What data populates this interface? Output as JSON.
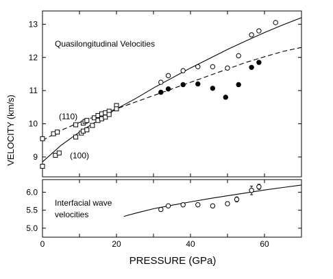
{
  "chart_data": [
    {
      "type": "scatter",
      "panel": "top",
      "annotation": "Quasilongitudinal Velocities",
      "ylabel": "VELOCITY (km/s)",
      "xlim": [
        0,
        70
      ],
      "ylim": [
        8.4,
        13.4
      ],
      "x_ticks": [
        0,
        10,
        20,
        30,
        40,
        50,
        60,
        70
      ],
      "y_ticks": [
        9,
        10,
        11,
        12,
        13
      ],
      "grid": false,
      "series_labels": {
        "s110": "(110)",
        "s100": "(100)"
      },
      "series": [
        {
          "key": "s110_points",
          "marker": "square",
          "x": [
            0,
            3,
            4,
            9,
            11,
            11.5,
            12,
            14,
            15,
            16,
            17,
            18,
            20,
            20
          ],
          "y": [
            9.55,
            9.7,
            9.75,
            9.97,
            10.02,
            10.07,
            10.1,
            10.18,
            10.25,
            10.3,
            10.33,
            10.38,
            10.5,
            10.55
          ]
        },
        {
          "key": "s100_points",
          "marker": "square",
          "x": [
            0,
            3.5,
            4.5,
            9,
            10.5,
            11,
            12,
            13.5,
            15,
            16,
            17,
            18,
            20
          ],
          "y": [
            8.72,
            9.05,
            9.12,
            9.6,
            9.72,
            9.78,
            9.82,
            9.95,
            10.1,
            10.15,
            10.2,
            10.28,
            10.45
          ]
        },
        {
          "key": "open_circles",
          "marker": "open-circle",
          "x": [
            32,
            34,
            38,
            42,
            46,
            50,
            53,
            56.5,
            58.5,
            63
          ],
          "y": [
            11.25,
            11.45,
            11.6,
            11.72,
            11.72,
            11.68,
            12.05,
            12.68,
            12.8,
            13.05
          ]
        },
        {
          "key": "filled_circles",
          "marker": "filled-circle",
          "x": [
            32,
            34,
            38,
            42,
            46,
            49.5,
            53,
            56.5,
            58.5
          ],
          "y": [
            10.95,
            11.05,
            11.18,
            11.2,
            11.07,
            10.8,
            11.18,
            11.7,
            11.85
          ]
        },
        {
          "key": "solid_curve",
          "line": "solid",
          "x": [
            0,
            5,
            10,
            15,
            20,
            25,
            30,
            35,
            40,
            45,
            50,
            55,
            60,
            65,
            70
          ],
          "y": [
            8.85,
            9.35,
            9.75,
            10.1,
            10.45,
            10.75,
            11.08,
            11.38,
            11.68,
            11.96,
            12.24,
            12.5,
            12.75,
            12.98,
            13.2
          ]
        },
        {
          "key": "dashed_curve",
          "line": "dashed",
          "x": [
            0,
            5,
            10,
            15,
            20,
            25,
            30,
            35,
            40,
            45,
            50,
            55,
            60,
            65,
            70
          ],
          "y": [
            9.5,
            9.8,
            10.04,
            10.25,
            10.45,
            10.65,
            10.85,
            11.05,
            11.25,
            11.45,
            11.65,
            11.85,
            12.02,
            12.18,
            12.3
          ]
        }
      ]
    },
    {
      "type": "scatter",
      "panel": "bottom",
      "annotation_lines": [
        "Interfacial wave",
        "velocities"
      ],
      "xlabel": "PRESSURE (GPa)",
      "xlim": [
        0,
        70
      ],
      "ylim": [
        4.75,
        6.35
      ],
      "x_ticks": [
        0,
        10,
        20,
        30,
        40,
        50,
        60,
        70
      ],
      "x_tick_labels": [
        "0",
        "20",
        "40",
        "60"
      ],
      "x_tick_label_values": [
        0,
        20,
        40,
        60
      ],
      "y_ticks": [
        5.0,
        5.5,
        6.0
      ],
      "y_tick_labels": [
        "5.0",
        "5.5",
        "6.0"
      ],
      "grid": false,
      "series": [
        {
          "key": "iw_points",
          "marker": "open-circle-errorbar",
          "x": [
            32,
            34,
            38,
            42,
            46,
            50,
            52.5,
            56.5,
            58.5
          ],
          "y": [
            5.52,
            5.62,
            5.65,
            5.65,
            5.62,
            5.68,
            5.8,
            6.05,
            6.15
          ],
          "err": [
            0.05,
            0.05,
            0.04,
            0.04,
            0.05,
            0.05,
            0.07,
            0.12,
            0.07
          ]
        },
        {
          "key": "iw_curve",
          "line": "solid",
          "x": [
            22,
            26,
            30,
            35,
            40,
            45,
            50,
            55,
            60,
            65,
            70
          ],
          "y": [
            5.33,
            5.44,
            5.54,
            5.64,
            5.73,
            5.82,
            5.9,
            5.98,
            6.06,
            6.13,
            6.2
          ]
        }
      ]
    }
  ]
}
